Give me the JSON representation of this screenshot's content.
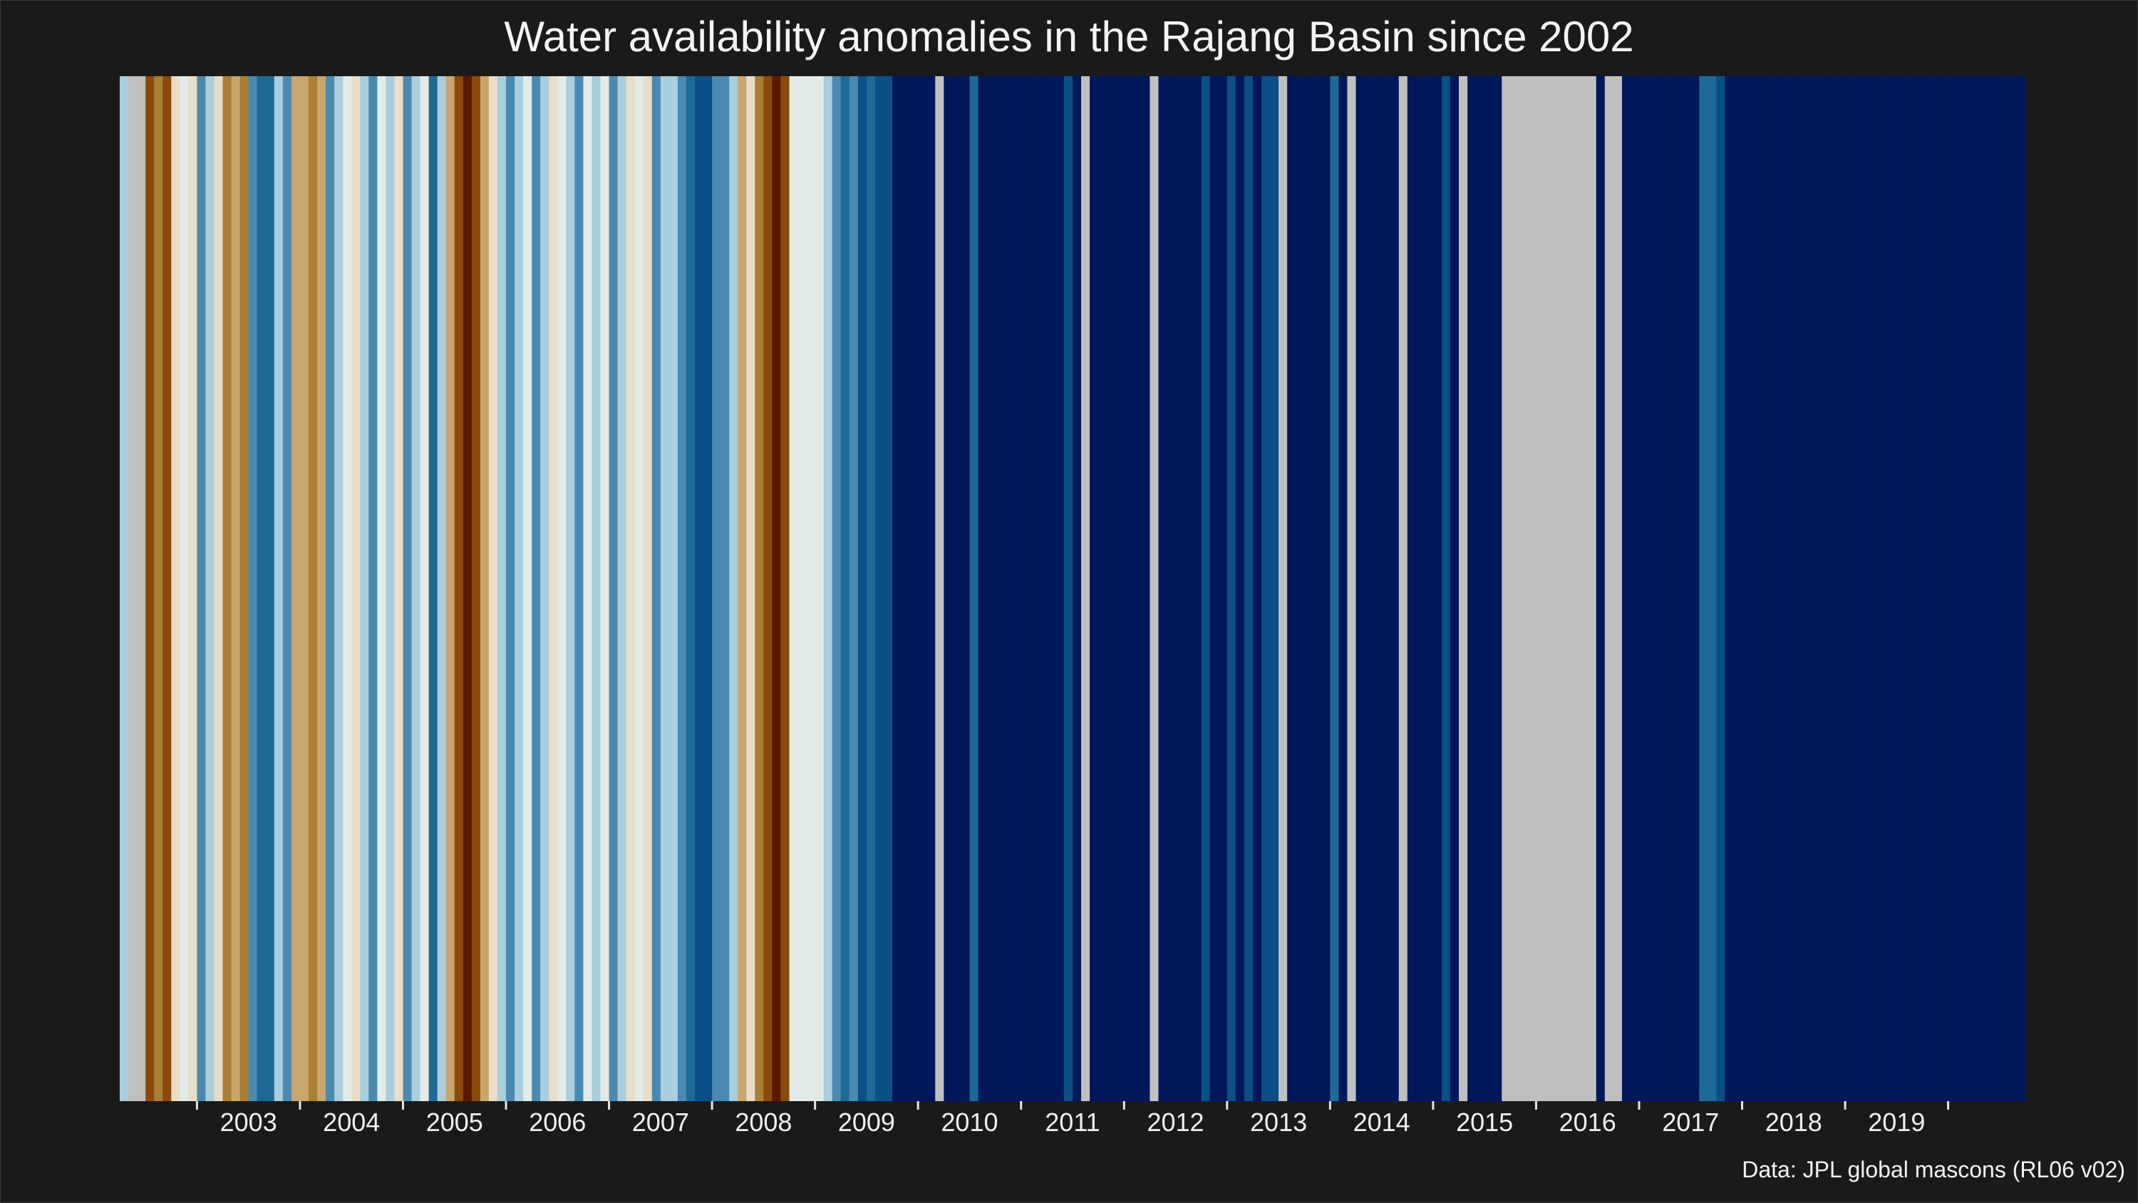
{
  "chart_data": {
    "type": "heatmap",
    "title": "Water availability anomalies in the Rajang Basin since 2002",
    "source": "Data: JPL global mascons (RL06 v02)",
    "xlabel": "",
    "ylabel": "",
    "x_tick_labels": [
      "2003",
      "2004",
      "2005",
      "2006",
      "2007",
      "2008",
      "2009",
      "2010",
      "2011",
      "2012",
      "2013",
      "2014",
      "2015",
      "2016",
      "2017",
      "2018",
      "2019"
    ],
    "time_range": [
      "2002-04",
      "2020-05"
    ],
    "anomaly_class_scale": {
      "-4": "#5a1a00",
      "-3": "#8a4a0a",
      "-2": "#a87f35",
      "-1": "#c9a66b",
      "0": "#e8ddc8",
      "1": "#e3ebe8",
      "2": "#a9cedd",
      "3": "#4a8ab0",
      "4": "#1e6a96",
      "5": "#0a4f86",
      "6": "#00175a",
      "missing": "#c0c0c0"
    },
    "monthly_anomaly_class": [
      2,
      "missing",
      "missing",
      -3,
      -2,
      -3,
      0,
      1,
      0,
      3,
      2,
      0,
      -2,
      -1,
      -2,
      3,
      4,
      4,
      2,
      3,
      -1,
      -1,
      -2,
      -1,
      3,
      2,
      1,
      0,
      2,
      3,
      1,
      2,
      0,
      3,
      2,
      1,
      4,
      2,
      -1,
      -3,
      -4,
      -3,
      -1,
      0,
      2,
      3,
      2,
      1,
      3,
      2,
      0,
      1,
      2,
      3,
      1,
      2,
      1,
      3,
      2,
      0,
      1,
      0,
      3,
      2,
      2,
      3,
      4,
      5,
      5,
      3,
      3,
      2,
      -1,
      0,
      -2,
      -3,
      -4,
      -3,
      1,
      1,
      1,
      1,
      2,
      3,
      4,
      3,
      5,
      4,
      5,
      5,
      6,
      6,
      6,
      6,
      6,
      "missing",
      6,
      6,
      6,
      4,
      6,
      6,
      6,
      6,
      6,
      6,
      6,
      6,
      6,
      6,
      5,
      6,
      "missing",
      6,
      6,
      6,
      6,
      6,
      6,
      6,
      "missing",
      6,
      6,
      6,
      6,
      6,
      5,
      6,
      6,
      5,
      6,
      5,
      6,
      5,
      5,
      "missing",
      6,
      6,
      6,
      6,
      6,
      4,
      6,
      "missing",
      6,
      6,
      6,
      6,
      6,
      "missing",
      6,
      6,
      6,
      6,
      5,
      6,
      "missing",
      6,
      6,
      6,
      6,
      "missing",
      "missing",
      "missing",
      "missing",
      "missing",
      "missing",
      "missing",
      "missing",
      "missing",
      "missing",
      "missing",
      6,
      "missing",
      "missing",
      6,
      6,
      6,
      6,
      6,
      6,
      6,
      6,
      6,
      4,
      4,
      5,
      6,
      6,
      6,
      6,
      6,
      6,
      6,
      6,
      6,
      6,
      6,
      6,
      6,
      6,
      6,
      6,
      6,
      6,
      6,
      6,
      6,
      6,
      6,
      6,
      6,
      6,
      6,
      6,
      6,
      6,
      6,
      6,
      6,
      6,
      6
    ]
  }
}
